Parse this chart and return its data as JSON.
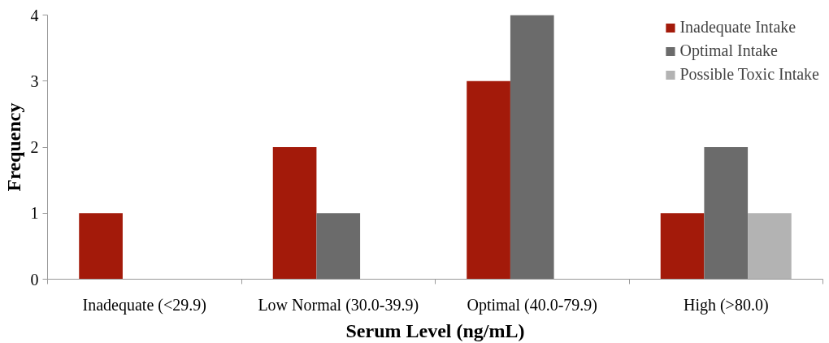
{
  "chart_data": {
    "type": "bar",
    "xlabel": "Serum Level (ng/mL)",
    "ylabel": "Frequency",
    "categories": [
      "Inadequate (<29.9)",
      "Low Normal (30.0-39.9)",
      "Optimal (40.0-79.9)",
      "High (>80.0)"
    ],
    "series": [
      {
        "name": "Inadequate Intake",
        "color": "#a31a0a",
        "values": [
          1,
          2,
          3,
          1
        ]
      },
      {
        "name": "Optimal Intake",
        "color": "#6b6b6b",
        "values": [
          null,
          1,
          4,
          2
        ]
      },
      {
        "name": "Possible Toxic Intake",
        "color": "#b3b3b3",
        "values": [
          null,
          null,
          null,
          1
        ]
      }
    ],
    "ylim": [
      0,
      4
    ],
    "yticks": [
      0,
      1,
      2,
      3,
      4
    ],
    "grid": false,
    "legend": "top right"
  }
}
